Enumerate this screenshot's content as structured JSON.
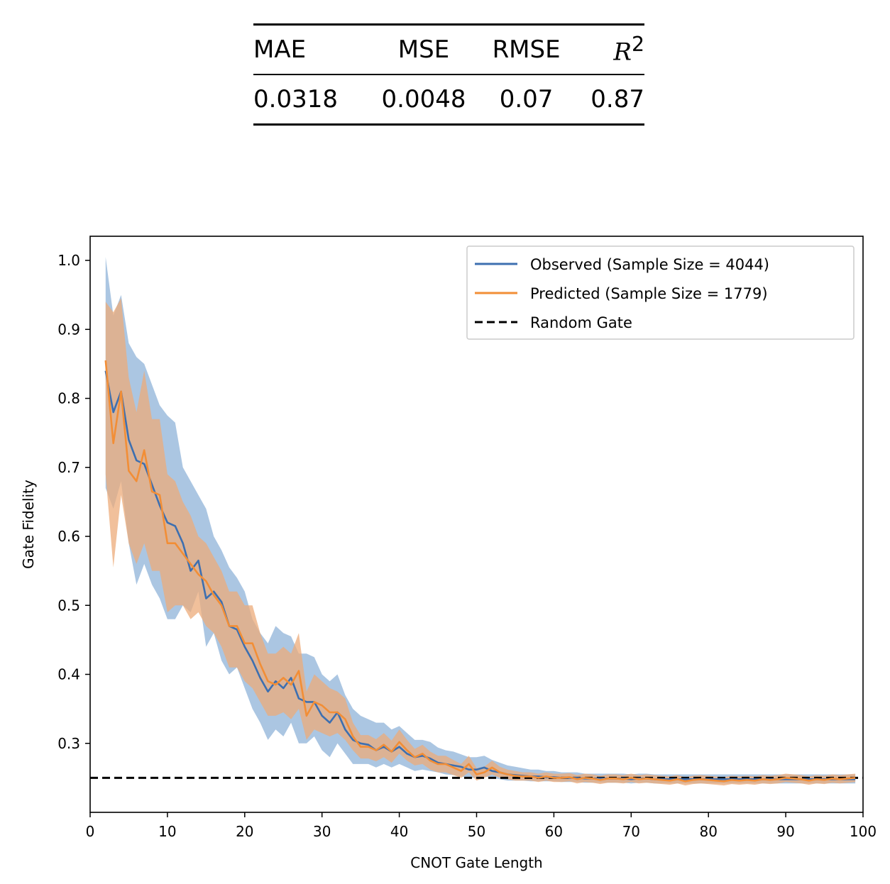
{
  "metrics_table": {
    "headers": [
      "MAE",
      "MSE",
      "RMSE",
      "R",
      "2"
    ],
    "values": [
      "0.0318",
      "0.0048",
      "0.07",
      "0.87"
    ]
  },
  "colors": {
    "observed": "#3d6fb0",
    "observed_band": "#a7c3e0",
    "predicted": "#f28e36",
    "predicted_band": "#ecab7a",
    "random": "#000000"
  },
  "chart_data": {
    "type": "line",
    "xlabel": "CNOT Gate Length",
    "ylabel": "Gate Fidelity",
    "xlim": [
      0,
      100
    ],
    "ylim": [
      0.2,
      1.035
    ],
    "xticks": [
      0,
      10,
      20,
      30,
      40,
      50,
      60,
      70,
      80,
      90,
      100
    ],
    "yticks": [
      0.3,
      0.4,
      0.5,
      0.6,
      0.7,
      0.8,
      0.9,
      1.0
    ],
    "grid": false,
    "legend_position": "top-right",
    "x": [
      2,
      3,
      4,
      5,
      6,
      7,
      8,
      9,
      10,
      11,
      12,
      13,
      14,
      15,
      16,
      17,
      18,
      19,
      20,
      21,
      22,
      23,
      24,
      25,
      26,
      27,
      28,
      29,
      30,
      31,
      32,
      33,
      34,
      35,
      36,
      37,
      38,
      39,
      40,
      41,
      42,
      43,
      44,
      45,
      46,
      47,
      48,
      49,
      50,
      51,
      52,
      53,
      54,
      55,
      56,
      57,
      58,
      59,
      60,
      61,
      62,
      63,
      64,
      65,
      66,
      67,
      68,
      69,
      70,
      71,
      72,
      73,
      74,
      75,
      76,
      77,
      78,
      79,
      80,
      81,
      82,
      83,
      84,
      85,
      86,
      87,
      88,
      89,
      90,
      91,
      92,
      93,
      94,
      95,
      96,
      97,
      98,
      99
    ],
    "series": [
      {
        "name": "Observed (Sample Size = 4044)",
        "values": [
          0.84,
          0.78,
          0.81,
          0.74,
          0.71,
          0.705,
          0.675,
          0.645,
          0.62,
          0.615,
          0.59,
          0.55,
          0.565,
          0.51,
          0.52,
          0.505,
          0.47,
          0.465,
          0.44,
          0.42,
          0.395,
          0.375,
          0.39,
          0.38,
          0.395,
          0.365,
          0.36,
          0.36,
          0.34,
          0.33,
          0.345,
          0.32,
          0.305,
          0.3,
          0.298,
          0.29,
          0.295,
          0.288,
          0.295,
          0.285,
          0.28,
          0.282,
          0.278,
          0.272,
          0.27,
          0.268,
          0.266,
          0.262,
          0.262,
          0.265,
          0.26,
          0.258,
          0.255,
          0.254,
          0.253,
          0.252,
          0.252,
          0.251,
          0.251,
          0.25,
          0.25,
          0.25,
          0.249,
          0.249,
          0.249,
          0.249,
          0.249,
          0.249,
          0.248,
          0.249,
          0.249,
          0.248,
          0.248,
          0.248,
          0.248,
          0.248,
          0.248,
          0.248,
          0.248,
          0.248,
          0.248,
          0.248,
          0.248,
          0.248,
          0.248,
          0.248,
          0.248,
          0.248,
          0.248,
          0.248,
          0.248,
          0.248,
          0.248,
          0.248,
          0.248,
          0.248,
          0.248,
          0.248
        ],
        "lower": [
          0.67,
          0.64,
          0.68,
          0.59,
          0.53,
          0.56,
          0.53,
          0.51,
          0.48,
          0.48,
          0.5,
          0.49,
          0.52,
          0.44,
          0.46,
          0.42,
          0.4,
          0.41,
          0.38,
          0.35,
          0.33,
          0.305,
          0.32,
          0.31,
          0.33,
          0.3,
          0.3,
          0.31,
          0.29,
          0.28,
          0.3,
          0.285,
          0.27,
          0.27,
          0.27,
          0.265,
          0.27,
          0.265,
          0.27,
          0.265,
          0.26,
          0.262,
          0.26,
          0.258,
          0.255,
          0.254,
          0.252,
          0.25,
          0.25,
          0.252,
          0.25,
          0.248,
          0.246,
          0.246,
          0.246,
          0.245,
          0.245,
          0.245,
          0.245,
          0.244,
          0.244,
          0.244,
          0.243,
          0.243,
          0.243,
          0.243,
          0.243,
          0.243,
          0.242,
          0.243,
          0.243,
          0.242,
          0.242,
          0.242,
          0.242,
          0.242,
          0.242,
          0.242,
          0.242,
          0.242,
          0.242,
          0.242,
          0.242,
          0.242,
          0.242,
          0.242,
          0.242,
          0.242,
          0.242,
          0.242,
          0.242,
          0.242,
          0.242,
          0.242,
          0.242,
          0.242,
          0.242,
          0.242
        ],
        "upper": [
          1.005,
          0.92,
          0.95,
          0.88,
          0.86,
          0.85,
          0.82,
          0.79,
          0.775,
          0.765,
          0.7,
          0.68,
          0.66,
          0.64,
          0.6,
          0.58,
          0.555,
          0.54,
          0.52,
          0.48,
          0.46,
          0.445,
          0.47,
          0.46,
          0.455,
          0.43,
          0.43,
          0.425,
          0.4,
          0.39,
          0.4,
          0.37,
          0.35,
          0.34,
          0.335,
          0.33,
          0.33,
          0.32,
          0.325,
          0.315,
          0.305,
          0.305,
          0.302,
          0.294,
          0.29,
          0.288,
          0.284,
          0.28,
          0.28,
          0.282,
          0.276,
          0.272,
          0.268,
          0.266,
          0.264,
          0.262,
          0.262,
          0.26,
          0.26,
          0.258,
          0.258,
          0.258,
          0.256,
          0.256,
          0.256,
          0.256,
          0.256,
          0.256,
          0.255,
          0.256,
          0.256,
          0.255,
          0.255,
          0.255,
          0.255,
          0.255,
          0.255,
          0.255,
          0.255,
          0.255,
          0.255,
          0.255,
          0.255,
          0.255,
          0.255,
          0.255,
          0.255,
          0.255,
          0.255,
          0.255,
          0.255,
          0.255,
          0.255,
          0.255,
          0.255,
          0.255,
          0.255,
          0.255
        ]
      },
      {
        "name": "Predicted (Sample Size = 1779)",
        "values": [
          0.855,
          0.735,
          0.81,
          0.695,
          0.68,
          0.725,
          0.665,
          0.66,
          0.59,
          0.59,
          0.575,
          0.56,
          0.545,
          0.535,
          0.515,
          0.5,
          0.47,
          0.47,
          0.445,
          0.445,
          0.415,
          0.39,
          0.385,
          0.395,
          0.385,
          0.405,
          0.34,
          0.36,
          0.355,
          0.345,
          0.345,
          0.335,
          0.31,
          0.295,
          0.295,
          0.29,
          0.298,
          0.288,
          0.302,
          0.29,
          0.28,
          0.285,
          0.275,
          0.27,
          0.27,
          0.265,
          0.26,
          0.27,
          0.255,
          0.258,
          0.265,
          0.258,
          0.255,
          0.253,
          0.252,
          0.252,
          0.25,
          0.252,
          0.25,
          0.25,
          0.251,
          0.248,
          0.25,
          0.249,
          0.247,
          0.249,
          0.249,
          0.248,
          0.25,
          0.248,
          0.249,
          0.248,
          0.247,
          0.246,
          0.248,
          0.245,
          0.247,
          0.248,
          0.247,
          0.246,
          0.245,
          0.247,
          0.246,
          0.247,
          0.246,
          0.248,
          0.247,
          0.248,
          0.25,
          0.249,
          0.248,
          0.246,
          0.248,
          0.247,
          0.249,
          0.248,
          0.249,
          0.25
        ],
        "lower": [
          0.69,
          0.555,
          0.66,
          0.59,
          0.56,
          0.59,
          0.55,
          0.55,
          0.49,
          0.5,
          0.5,
          0.48,
          0.49,
          0.47,
          0.46,
          0.44,
          0.41,
          0.41,
          0.39,
          0.38,
          0.36,
          0.34,
          0.34,
          0.345,
          0.335,
          0.35,
          0.305,
          0.32,
          0.315,
          0.31,
          0.315,
          0.305,
          0.29,
          0.278,
          0.278,
          0.274,
          0.28,
          0.272,
          0.285,
          0.275,
          0.268,
          0.27,
          0.262,
          0.258,
          0.258,
          0.254,
          0.25,
          0.258,
          0.246,
          0.25,
          0.255,
          0.25,
          0.248,
          0.246,
          0.246,
          0.246,
          0.244,
          0.246,
          0.244,
          0.244,
          0.245,
          0.242,
          0.244,
          0.243,
          0.241,
          0.243,
          0.243,
          0.242,
          0.244,
          0.242,
          0.243,
          0.242,
          0.241,
          0.24,
          0.242,
          0.239,
          0.241,
          0.242,
          0.241,
          0.24,
          0.239,
          0.241,
          0.24,
          0.241,
          0.24,
          0.242,
          0.241,
          0.242,
          0.244,
          0.243,
          0.242,
          0.24,
          0.242,
          0.241,
          0.243,
          0.242,
          0.243,
          0.244
        ],
        "upper": [
          0.94,
          0.925,
          0.945,
          0.83,
          0.78,
          0.84,
          0.77,
          0.77,
          0.69,
          0.68,
          0.65,
          0.63,
          0.6,
          0.59,
          0.57,
          0.55,
          0.52,
          0.52,
          0.5,
          0.5,
          0.46,
          0.43,
          0.43,
          0.44,
          0.43,
          0.46,
          0.375,
          0.4,
          0.39,
          0.38,
          0.375,
          0.365,
          0.33,
          0.312,
          0.312,
          0.306,
          0.315,
          0.304,
          0.32,
          0.305,
          0.292,
          0.298,
          0.288,
          0.282,
          0.282,
          0.276,
          0.27,
          0.282,
          0.264,
          0.266,
          0.275,
          0.266,
          0.262,
          0.26,
          0.258,
          0.258,
          0.256,
          0.258,
          0.256,
          0.256,
          0.257,
          0.254,
          0.256,
          0.255,
          0.253,
          0.255,
          0.255,
          0.254,
          0.256,
          0.254,
          0.255,
          0.254,
          0.253,
          0.252,
          0.254,
          0.251,
          0.253,
          0.254,
          0.253,
          0.252,
          0.251,
          0.253,
          0.252,
          0.253,
          0.252,
          0.254,
          0.253,
          0.254,
          0.256,
          0.255,
          0.254,
          0.252,
          0.254,
          0.253,
          0.255,
          0.254,
          0.255,
          0.256
        ]
      },
      {
        "name": "Random Gate",
        "style": "dashed",
        "constant": 0.25
      }
    ]
  }
}
